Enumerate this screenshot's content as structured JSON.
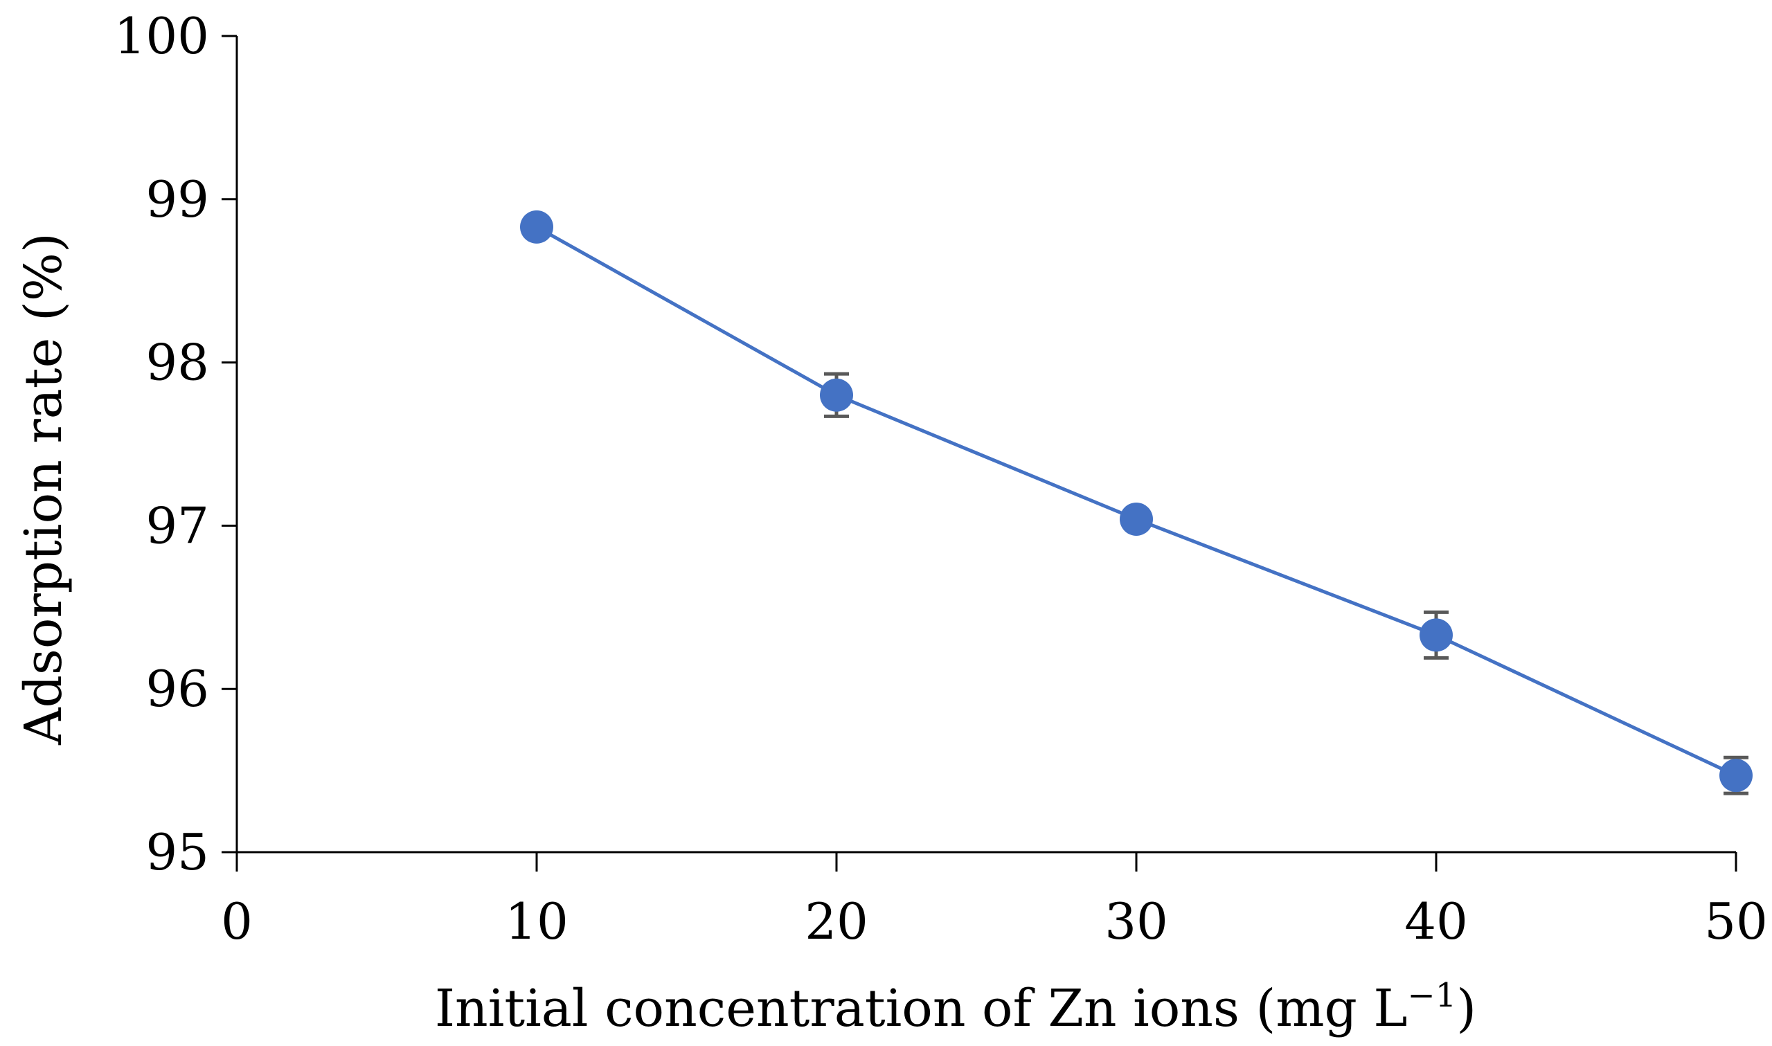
{
  "chart_data": {
    "type": "line",
    "title": "",
    "xlabel": "Initial concentration of Zn ions (mg L",
    "xlabel_superscript": "−1",
    "xlabel_suffix": ")",
    "ylabel": "Adsorption rate (%)",
    "xlim": [
      0,
      50
    ],
    "ylim": [
      95,
      100
    ],
    "x_ticks": [
      "0",
      "10",
      "20",
      "30",
      "40",
      "50"
    ],
    "y_ticks": [
      "95",
      "96",
      "97",
      "98",
      "99",
      "100"
    ],
    "grid": false,
    "legend": "none",
    "series": [
      {
        "name": "Adsorption rate",
        "color": "#4472c4",
        "error_color": "#595959",
        "x": [
          10,
          20,
          30,
          40,
          50
        ],
        "y": [
          98.83,
          97.8,
          97.04,
          96.33,
          95.47
        ],
        "error": [
          0.0,
          0.13,
          0.0,
          0.14,
          0.11
        ]
      }
    ]
  }
}
